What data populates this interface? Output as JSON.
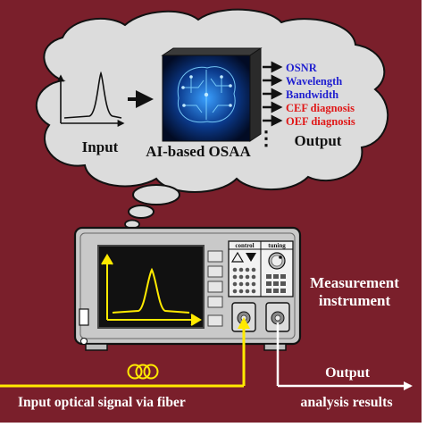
{
  "cloud": {
    "input_label": "Input",
    "engine_label": "AI-based OSAA",
    "output_label": "Output",
    "outputs": [
      {
        "text": "OSNR",
        "color": "#1f1fd0"
      },
      {
        "text": "Wavelength",
        "color": "#1f1fd0"
      },
      {
        "text": "Bandwidth",
        "color": "#1f1fd0"
      },
      {
        "text": "CEF diagnosis",
        "color": "#e01818"
      },
      {
        "text": "OEF diagnosis",
        "color": "#e01818"
      }
    ],
    "more_indicator": "⋮",
    "brain_icon": "ai-brain-icon"
  },
  "instrument": {
    "control_label": "control",
    "tuning_label": "tuning",
    "control_icon": "triangle-up-down-icon",
    "tuning_icon": "tuning-knob-icon"
  },
  "labels": {
    "measurement_line1": "Measurement",
    "measurement_line2": "instrument",
    "output": "Output",
    "input_signal": "Input optical signal via fiber",
    "analysis_results": "analysis results"
  },
  "colors": {
    "background": "#7a1f2b",
    "signal": "#ffea00",
    "cloud_fill": "#dcdcdc",
    "output_blue": "#1f1fd0",
    "output_red": "#e01818"
  }
}
